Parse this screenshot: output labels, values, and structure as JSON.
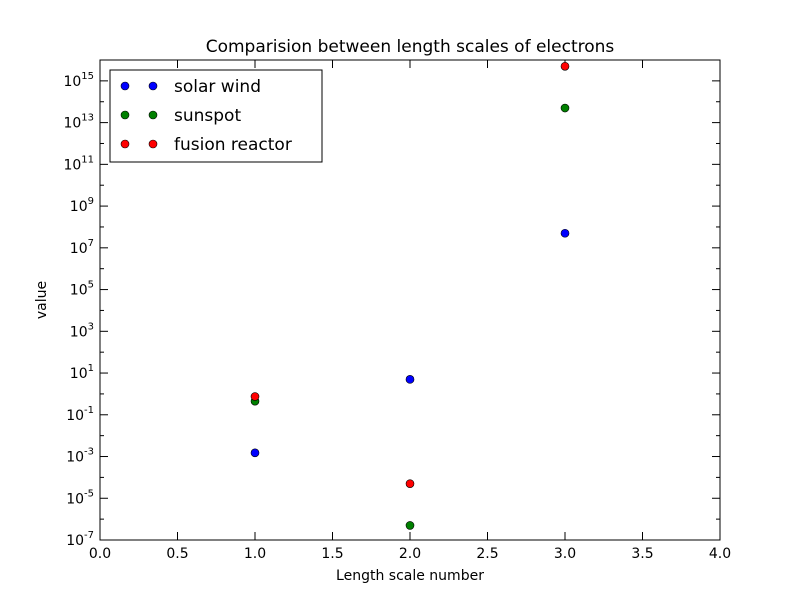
{
  "chart_data": {
    "type": "scatter",
    "title": "Comparision between length scales of electrons",
    "xlabel": "Length scale number",
    "ylabel": "value",
    "xlim": [
      0.0,
      4.0
    ],
    "ylim": [
      1e-07,
      1e+16
    ],
    "yscale": "log",
    "xticks": [
      "0.0",
      "0.5",
      "1.0",
      "1.5",
      "2.0",
      "2.5",
      "3.0",
      "3.5",
      "4.0"
    ],
    "yticks": [
      {
        "base": "10",
        "exp": "15"
      },
      {
        "base": "10",
        "exp": "13"
      },
      {
        "base": "10",
        "exp": "11"
      },
      {
        "base": "10",
        "exp": "9"
      },
      {
        "base": "10",
        "exp": "7"
      },
      {
        "base": "10",
        "exp": "5"
      },
      {
        "base": "10",
        "exp": "3"
      },
      {
        "base": "10",
        "exp": "1"
      },
      {
        "base": "10",
        "exp": "-1"
      },
      {
        "base": "10",
        "exp": "-3"
      },
      {
        "base": "10",
        "exp": "-5"
      },
      {
        "base": "10",
        "exp": "-7"
      }
    ],
    "grid": false,
    "legend_position": "top-left",
    "series": [
      {
        "name": "solar wind",
        "color": "#0000ff",
        "x": [
          1,
          2,
          3
        ],
        "y": [
          0.0015,
          5,
          50000000
        ]
      },
      {
        "name": "sunspot",
        "color": "#008000",
        "x": [
          1,
          2,
          3
        ],
        "y": [
          0.45,
          5e-07,
          50000000000000
        ]
      },
      {
        "name": "fusion reactor",
        "color": "#ff0000",
        "x": [
          1,
          2,
          3
        ],
        "y": [
          0.75,
          5e-05,
          5000000000000000.0
        ]
      }
    ]
  }
}
